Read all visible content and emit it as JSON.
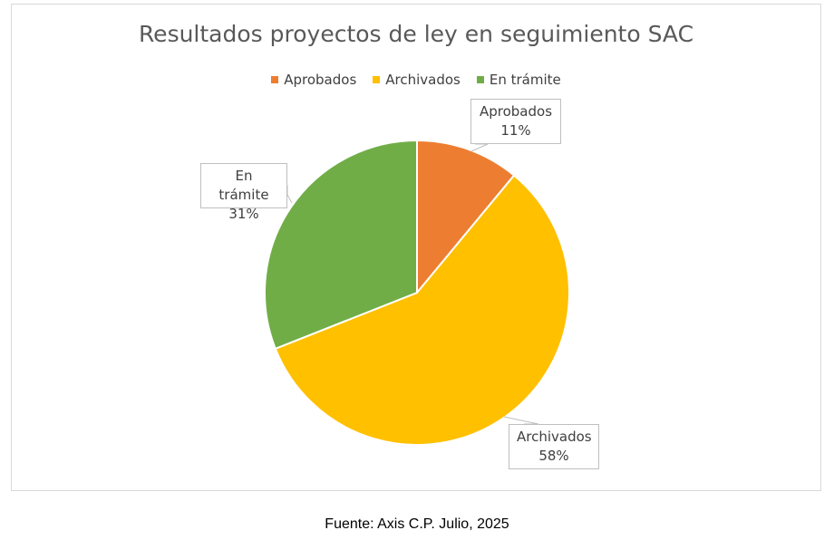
{
  "chart_data": {
    "type": "pie",
    "title": "Resultados proyectos de ley en seguimiento SAC",
    "legend_position": "top",
    "slices": [
      {
        "name": "Aprobados",
        "value": 11,
        "label": "11%",
        "color": "#ED7D31"
      },
      {
        "name": "Archivados",
        "value": 58,
        "label": "58%",
        "color": "#FFC000"
      },
      {
        "name": "En trámite",
        "value": 31,
        "label": "31%",
        "color": "#70AD47"
      }
    ]
  },
  "source": "Fuente: Axis C.P. Julio, 2025"
}
